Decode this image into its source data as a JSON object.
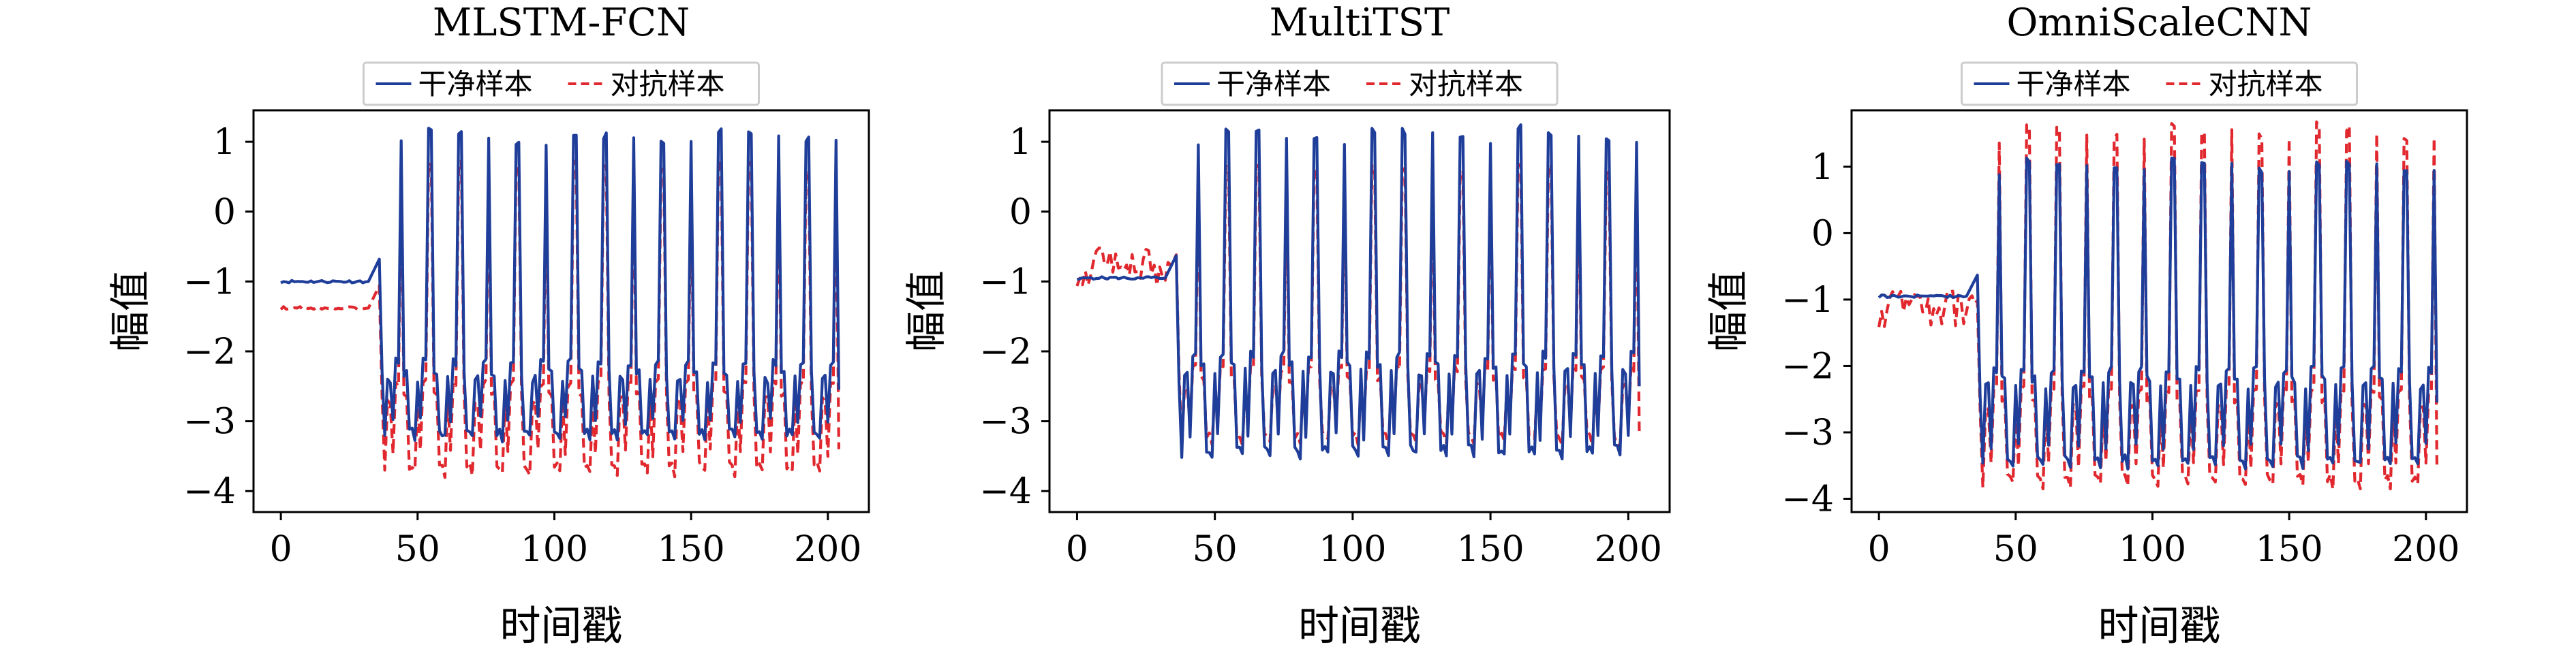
{
  "figure": {
    "legend": {
      "clean_label": "干净样本",
      "adversarial_label": "对抗样本"
    },
    "colors": {
      "clean": "#1f3e9a",
      "adversarial": "#e0282e",
      "axes": "#000000",
      "legend_border": "#cccccc"
    }
  },
  "chart_data": [
    {
      "type": "line",
      "title": "MLSTM-FCN",
      "xlabel": "时间戳",
      "ylabel": "幅值",
      "xlim": [
        -10,
        215
      ],
      "ylim": [
        -4.3,
        1.45
      ],
      "xticks": [
        0,
        50,
        100,
        150,
        200
      ],
      "yticks": [
        1,
        0,
        -1,
        -2,
        -3,
        -4
      ],
      "grid": false,
      "legend_position": "top-center",
      "waveform": {
        "points": 205,
        "transition_index": 37,
        "cycle_length": 10.6,
        "clean": {
          "flat_level": -1.0,
          "peak": 1.05,
          "trough": -3.25,
          "mid_dip": -2.4,
          "end_value": -2.55
        },
        "adversarial": {
          "flat_level": -1.38,
          "peak": 0.65,
          "trough": -3.75,
          "mid_dip": -2.7,
          "end_value": -3.4,
          "line_style": "dashed"
        }
      },
      "series": [
        {
          "name": "干净样本",
          "color": "#1f3e9a",
          "style": "solid"
        },
        {
          "name": "对抗样本",
          "color": "#e0282e",
          "style": "dashed"
        }
      ]
    },
    {
      "type": "line",
      "title": "MultiTST",
      "xlabel": "时间戳",
      "ylabel": "幅值",
      "xlim": [
        -10,
        215
      ],
      "ylim": [
        -4.3,
        1.45
      ],
      "xticks": [
        0,
        50,
        100,
        150,
        200
      ],
      "yticks": [
        1,
        0,
        -1,
        -2,
        -3,
        -4
      ],
      "grid": false,
      "legend_position": "top-center",
      "waveform": {
        "points": 205,
        "transition_index": 37,
        "cycle_length": 10.6,
        "clean": {
          "flat_level": -0.95,
          "peak": 1.1,
          "trough": -3.5,
          "mid_dip": -2.3,
          "end_value": -2.5
        },
        "adversarial": {
          "flat_level": -0.9,
          "peak": 0.6,
          "trough": -3.3,
          "mid_dip": -2.5,
          "end_value": -3.2,
          "line_style": "dashed",
          "noisy_flat": true
        }
      },
      "series": [
        {
          "name": "干净样本",
          "color": "#1f3e9a",
          "style": "solid"
        },
        {
          "name": "对抗样本",
          "color": "#e0282e",
          "style": "dashed"
        }
      ]
    },
    {
      "type": "line",
      "title": "OmniScaleCNN",
      "xlabel": "时间戳",
      "ylabel": "幅值",
      "xlim": [
        -10,
        215
      ],
      "ylim": [
        -4.2,
        1.85
      ],
      "xticks": [
        0,
        50,
        100,
        150,
        200
      ],
      "yticks": [
        1,
        0,
        -1,
        -2,
        -3,
        -4
      ],
      "grid": false,
      "legend_position": "top-center",
      "waveform": {
        "points": 205,
        "transition_index": 37,
        "cycle_length": 10.6,
        "clean": {
          "flat_level": -0.95,
          "peak": 1.0,
          "trough": -3.5,
          "mid_dip": -2.3,
          "end_value": -2.55
        },
        "adversarial": {
          "flat_level": -1.25,
          "peak": 1.5,
          "trough": -3.8,
          "mid_dip": -2.6,
          "end_value": -3.5,
          "line_style": "dashed",
          "noisy_flat": true
        }
      },
      "series": [
        {
          "name": "干净样本",
          "color": "#1f3e9a",
          "style": "solid"
        },
        {
          "name": "对抗样本",
          "color": "#e0282e",
          "style": "dashed"
        }
      ]
    }
  ]
}
